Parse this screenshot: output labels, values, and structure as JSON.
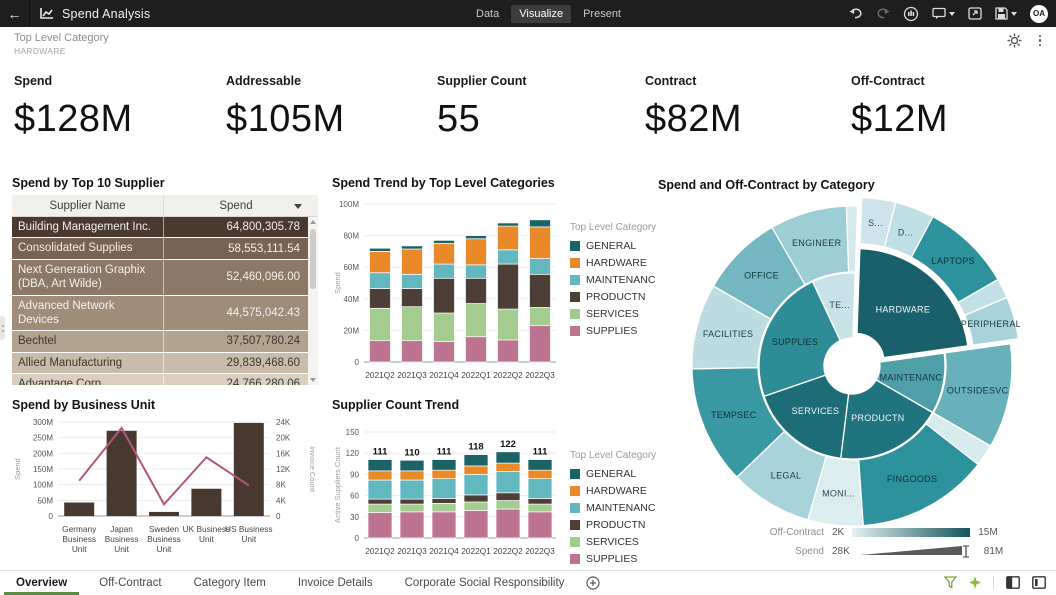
{
  "header": {
    "title": "Spend Analysis",
    "tabs": [
      {
        "label": "Data",
        "active": false
      },
      {
        "label": "Visualize",
        "active": true
      },
      {
        "label": "Present",
        "active": false
      }
    ],
    "avatar": "OA"
  },
  "filter": {
    "label": "Top Level Category",
    "value": "HARDWARE"
  },
  "kpis": [
    {
      "label": "Spend",
      "value": "$128M"
    },
    {
      "label": "Addressable",
      "value": "$105M"
    },
    {
      "label": "Supplier Count",
      "value": "55"
    },
    {
      "label": "Contract",
      "value": "$82M"
    },
    {
      "label": "Off-Contract",
      "value": "$12M"
    }
  ],
  "footer": {
    "tabs": [
      {
        "label": "Overview",
        "active": true
      },
      {
        "label": "Off-Contract",
        "active": false
      },
      {
        "label": "Category Item",
        "active": false
      },
      {
        "label": "Invoice Details",
        "active": false
      },
      {
        "label": "Corporate Social Responsibility",
        "active": false
      }
    ]
  },
  "chart_data": [
    {
      "id": "top_suppliers",
      "type": "table",
      "title": "Spend by Top 10 Supplier",
      "columns": [
        "Supplier Name",
        "Spend"
      ],
      "rows": [
        {
          "name": "Building Management Inc.",
          "spend": "64,800,305.78",
          "bg": "#4a392e",
          "fg": "#f3eee8"
        },
        {
          "name": "Consolidated Supplies",
          "spend": "58,553,111.54",
          "bg": "#786252",
          "fg": "#f3eee8"
        },
        {
          "name": "Next Generation Graphix (DBA, Art Wilde)",
          "spend": "52,460,096.00",
          "bg": "#8c7866",
          "fg": "#f5f0ea"
        },
        {
          "name": "Advanced Network Devices",
          "spend": "44,575,042.43",
          "bg": "#9f8d7a",
          "fg": "#f5f0ea"
        },
        {
          "name": "Bechtel",
          "spend": "37,507,780.24",
          "bg": "#b2a38f",
          "fg": "#3e382f"
        },
        {
          "name": "Allied Manufacturing",
          "spend": "29,839,468.60",
          "bg": "#c9bcaa",
          "fg": "#3e382f"
        },
        {
          "name": "Advantage Corp",
          "spend": "24,766,280.06",
          "bg": "#d9cfc0",
          "fg": "#3e382f"
        }
      ]
    },
    {
      "id": "spend_trend",
      "type": "bar",
      "stacked": true,
      "title": "Spend Trend by Top Level Categories",
      "ylabel": "Spend",
      "legend_title": "Top Level Category",
      "legend_position": "right",
      "categories": [
        "2021Q2",
        "2021Q3",
        "2021Q4",
        "2022Q1",
        "2022Q2",
        "2022Q3"
      ],
      "ylim": [
        0,
        100
      ],
      "ytick_step": 20,
      "unit": "M",
      "series": [
        {
          "name": "GENERAL",
          "color": "#1b6366",
          "values": [
            2,
            2,
            2,
            2,
            2,
            4.5
          ]
        },
        {
          "name": "HARDWARE",
          "color": "#e8892a",
          "values": [
            13.5,
            16,
            13,
            16.5,
            15,
            20
          ]
        },
        {
          "name": "MAINTENANC",
          "color": "#63b8bf",
          "values": [
            10,
            9,
            9,
            8.5,
            9,
            10
          ]
        },
        {
          "name": "PRODUCTN",
          "color": "#4d3f37",
          "values": [
            12.5,
            11.5,
            22,
            16,
            28.5,
            21
          ]
        },
        {
          "name": "SERVICES",
          "color": "#a2cc90",
          "values": [
            20.5,
            21.5,
            18,
            21,
            19.5,
            11.5
          ]
        },
        {
          "name": "SUPPLIES",
          "color": "#bd7490",
          "values": [
            13.5,
            13.5,
            13,
            16,
            14,
            23
          ]
        }
      ]
    },
    {
      "id": "spend_offcontract",
      "type": "pie",
      "subtype": "sunburst",
      "title": "Spend and Off-Contract by Category",
      "legend": {
        "off_contract": {
          "label": "Off-Contract",
          "min": "2K",
          "max": "15M",
          "gradient": [
            "#e3f1f3",
            "#14545c"
          ]
        },
        "spend": {
          "label": "Spend",
          "min": "28K",
          "max": "81M",
          "color": "#5a5a5a"
        }
      },
      "segments": [
        {
          "label": "HARDWARE",
          "ring": "inner",
          "a0": 2,
          "a1": 82,
          "r0": 28,
          "r1": 113,
          "color": "#19606a",
          "label_color": "#f2f8f9",
          "label_r": 70,
          "explode": true
        },
        {
          "label": "MAINTENANC",
          "ring": "inner",
          "a0": 82,
          "a1": 120,
          "r0": 28,
          "r1": 93,
          "color": "#4f9fa8",
          "label_color": "#123740",
          "label_r": 60
        },
        {
          "label": "PRODUCTN",
          "ring": "inner",
          "a0": 120,
          "a1": 187,
          "r0": 28,
          "r1": 93,
          "color": "#1f747d",
          "label_color": "#eef6f7",
          "label_r": 58
        },
        {
          "label": "SERVICES",
          "ring": "inner",
          "a0": 187,
          "a1": 251,
          "r0": 28,
          "r1": 93,
          "color": "#1d6d76",
          "label_color": "#eef6f7",
          "label_r": 58
        },
        {
          "label": "SUPPLIES",
          "ring": "inner",
          "a0": 251,
          "a1": 335,
          "r0": 28,
          "r1": 93,
          "color": "#2e8c96",
          "label_color": "#0f3137",
          "label_r": 62
        },
        {
          "label": "TE...",
          "ring": "inner",
          "a0": 335,
          "a1": 362,
          "r0": 28,
          "r1": 93,
          "color": "#c9e2e8",
          "label_color": "#2c4c55",
          "label_r": 62
        },
        {
          "label": "S...",
          "ring": "outer",
          "a0": 2,
          "a1": 14,
          "r0": 118,
          "r1": 164,
          "color": "#cde5ea",
          "label_color": "#2c4c55",
          "label_r": 140,
          "explode": true
        },
        {
          "label": "D...",
          "ring": "outer",
          "a0": 14,
          "a1": 28,
          "r0": 118,
          "r1": 164,
          "color": "#bfdfe5",
          "label_color": "#2c4c55",
          "label_r": 138,
          "explode": true
        },
        {
          "label": "LAPTOPS",
          "ring": "outer",
          "a0": 28,
          "a1": 60,
          "r0": 118,
          "r1": 164,
          "color": "#2e929c",
          "label_color": "#0f3137",
          "label_r": 140,
          "explode": true
        },
        {
          "label": "",
          "ring": "outer",
          "a0": 60,
          "a1": 67,
          "r0": 118,
          "r1": 164,
          "color": "#c2e0e6",
          "explode": true
        },
        {
          "label": "PERIPHERAL",
          "ring": "outer",
          "a0": 67,
          "a1": 82,
          "r0": 118,
          "r1": 164,
          "color": "#a9d3da",
          "label_color": "#1d3b43",
          "label_r": 140,
          "explode": true
        },
        {
          "label": "OUTSIDESVC",
          "ring": "outer",
          "a0": 82,
          "a1": 120,
          "r0": 94,
          "r1": 160,
          "color": "#68b0ba",
          "label_color": "#123740",
          "label_r": 128
        },
        {
          "label": "",
          "ring": "outer",
          "a0": 120,
          "a1": 128,
          "r0": 94,
          "r1": 160,
          "color": "#d8ebee"
        },
        {
          "label": "FINGOODS",
          "ring": "outer",
          "a0": 128,
          "a1": 176,
          "r0": 94,
          "r1": 160,
          "color": "#2e929c",
          "label_color": "#0f3137",
          "label_r": 128
        },
        {
          "label": "MONI...",
          "ring": "outer",
          "a0": 176,
          "a1": 196,
          "r0": 94,
          "r1": 160,
          "color": "#dcedf0",
          "label_color": "#2c4c55",
          "label_r": 128
        },
        {
          "label": "LEGAL",
          "ring": "outer",
          "a0": 196,
          "a1": 226,
          "r0": 94,
          "r1": 160,
          "color": "#a9d3da",
          "label_color": "#1d3b43",
          "label_r": 128
        },
        {
          "label": "TEMPSEC",
          "ring": "outer",
          "a0": 226,
          "a1": 269,
          "r0": 94,
          "r1": 160,
          "color": "#3a98a2",
          "label_color": "#0f3137",
          "label_r": 128
        },
        {
          "label": "FACILITIES",
          "ring": "outer",
          "a0": 269,
          "a1": 300,
          "r0": 94,
          "r1": 160,
          "color": "#bcdce2",
          "label_color": "#1d3b43",
          "label_r": 128
        },
        {
          "label": "OFFICE",
          "ring": "outer",
          "a0": 300,
          "a1": 330,
          "r0": 94,
          "r1": 160,
          "color": "#74b7c0",
          "label_color": "#123740",
          "label_r": 128
        },
        {
          "label": "ENGINEER",
          "ring": "outer",
          "a0": 330,
          "a1": 358,
          "r0": 94,
          "r1": 160,
          "color": "#9dced5",
          "label_color": "#1d3b43",
          "label_r": 128
        },
        {
          "label": "",
          "ring": "outer",
          "a0": 358,
          "a1": 362,
          "r0": 94,
          "r1": 160,
          "color": "#d5e9ec"
        }
      ]
    },
    {
      "id": "business_unit",
      "type": "bar",
      "combo_line": true,
      "title": "Spend by Business Unit",
      "categories": [
        "Germany Business Unit",
        "Japan Business Unit",
        "Sweden Business Unit",
        "UK Business Unit",
        "US Business Unit"
      ],
      "bars": {
        "name": "Spend",
        "color": "#483930",
        "values": [
          43,
          272,
          13,
          87,
          297
        ],
        "ylim": [
          0,
          300
        ],
        "ytick_step": 50,
        "unit": "M",
        "ylabel": "Spend"
      },
      "line": {
        "name": "Invoice Count",
        "color": "#b4567c",
        "values": [
          9,
          22.5,
          3,
          15,
          7.8
        ],
        "ylim": [
          0,
          24
        ],
        "ytick_step": 4,
        "unit": "K",
        "ylabel": "Invoice Count"
      }
    },
    {
      "id": "supplier_count_trend",
      "type": "bar",
      "stacked": true,
      "title": "Supplier Count Trend",
      "ylabel": "Active Suppliers Count",
      "legend_title": "Top Level Category",
      "legend_position": "right",
      "categories": [
        "2021Q2",
        "2021Q3",
        "2021Q4",
        "2022Q1",
        "2022Q2",
        "2022Q3"
      ],
      "ylim": [
        0,
        150
      ],
      "ytick_step": 30,
      "unit": "",
      "totals": [
        111,
        110,
        111,
        118,
        122,
        111
      ],
      "series": [
        {
          "name": "GENERAL",
          "color": "#1b6366",
          "values": [
            16,
            15,
            15,
            16,
            16,
            15
          ]
        },
        {
          "name": "HARDWARE",
          "color": "#e8892a",
          "values": [
            13,
            13,
            12,
            12,
            12,
            12
          ]
        },
        {
          "name": "MAINTENANC",
          "color": "#63b8bf",
          "values": [
            27,
            27,
            28,
            29,
            30,
            28
          ]
        },
        {
          "name": "PRODUCTN",
          "color": "#4d3f37",
          "values": [
            7,
            7,
            7,
            10,
            11,
            8
          ]
        },
        {
          "name": "SERVICES",
          "color": "#a2cc90",
          "values": [
            12,
            11,
            12,
            12,
            12,
            11
          ]
        },
        {
          "name": "SUPPLIES",
          "color": "#bd7490",
          "values": [
            36,
            37,
            37,
            39,
            41,
            37
          ]
        }
      ]
    }
  ]
}
